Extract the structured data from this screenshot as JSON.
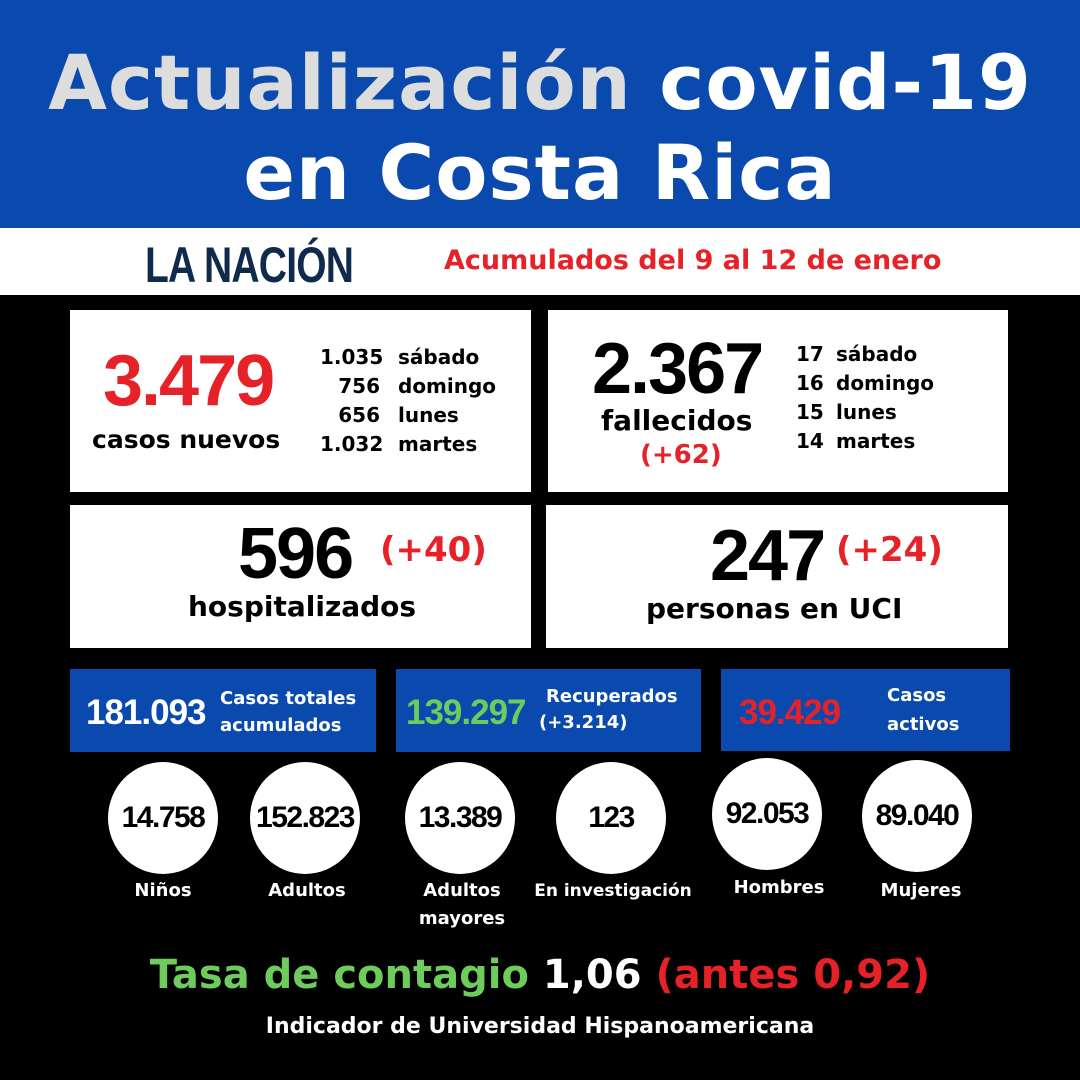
{
  "header": {
    "title_part1": "Actualización",
    "title_part2": "covid-19",
    "title_line2": "en Costa Rica"
  },
  "band": {
    "logo": "LA NACIÓN",
    "subtitle": "Acumulados del 9 al 12 de enero"
  },
  "cases": {
    "value": "3.479",
    "label": "casos nuevos",
    "days": [
      {
        "n": "1.035",
        "d": "sábado"
      },
      {
        "n": "756",
        "d": "domingo"
      },
      {
        "n": "656",
        "d": "lunes"
      },
      {
        "n": "1.032",
        "d": "martes"
      }
    ]
  },
  "deaths": {
    "value": "2.367",
    "label": "fallecidos",
    "change": "(+62)",
    "days": [
      {
        "n": "17",
        "d": "sábado"
      },
      {
        "n": "16",
        "d": "domingo"
      },
      {
        "n": "15",
        "d": "lunes"
      },
      {
        "n": "14",
        "d": "martes"
      }
    ]
  },
  "hospital": {
    "value": "596",
    "change": "(+40)",
    "label": "hospitalizados"
  },
  "icu": {
    "value": "247",
    "change": "(+24)",
    "label": "personas en UCI"
  },
  "totals": [
    {
      "value": "181.093",
      "line1": "Casos totales",
      "line2": "acumulados"
    },
    {
      "value": "139.297",
      "line1": "Recuperados",
      "line2": "(+3.214)"
    },
    {
      "value": "39.429",
      "line1": "Casos",
      "line2": "activos"
    }
  ],
  "breakdown": [
    {
      "value": "14.758",
      "label": "Niños"
    },
    {
      "value": "152.823",
      "label": "Adultos"
    },
    {
      "value": "13.389",
      "label": "Adultos mayores"
    },
    {
      "value": "123",
      "label": "En investigación"
    },
    {
      "value": "92.053",
      "label": "Hombres"
    },
    {
      "value": "89.040",
      "label": "Mujeres"
    }
  ],
  "rate": {
    "label": "Tasa de contagio",
    "value": "1,06",
    "previous": "(antes 0,92)",
    "source": "Indicador de Universidad Hispanoamericana"
  },
  "colors": {
    "blue": "#0a4aae",
    "red": "#e62228",
    "green": "#6dcc5c"
  }
}
